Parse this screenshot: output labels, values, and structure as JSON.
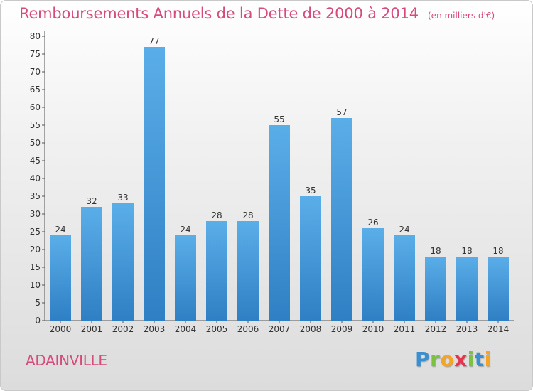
{
  "header": {
    "title": "Remboursements Annuels de la Dette de 2000 à 2014",
    "unit": "(en milliers d'€)"
  },
  "footer": {
    "commune": "ADAINVILLE"
  },
  "logo": {
    "text": "Proxiti",
    "letters": [
      {
        "char": "P",
        "color": "#3a8fd1"
      },
      {
        "char": "r",
        "color": "#7cc242"
      },
      {
        "char": "o",
        "color": "#f4a524"
      },
      {
        "char": "x",
        "color": "#e5344f"
      },
      {
        "char": "i",
        "color": "#7cc242"
      },
      {
        "char": "t",
        "color": "#3a8fd1"
      },
      {
        "char": "i",
        "color": "#f4a524"
      }
    ]
  },
  "chart_data": {
    "type": "bar",
    "title": "Remboursements Annuels de la Dette de 2000 à 2014",
    "subtitle": "(en milliers d'€)",
    "xlabel": "",
    "ylabel": "",
    "categories": [
      "2000",
      "2001",
      "2002",
      "2003",
      "2004",
      "2005",
      "2006",
      "2007",
      "2008",
      "2009",
      "2010",
      "2011",
      "2012",
      "2013",
      "2014"
    ],
    "values": [
      24,
      32,
      33,
      77,
      24,
      28,
      28,
      55,
      35,
      57,
      26,
      24,
      18,
      18,
      18
    ],
    "ylim": [
      0,
      80
    ],
    "yticks": [
      0,
      5,
      10,
      15,
      20,
      25,
      30,
      35,
      40,
      45,
      50,
      55,
      60,
      65,
      70,
      75,
      80
    ],
    "grid": false,
    "legend": "none",
    "bar_color_top": "#5aaee8",
    "bar_color_bottom": "#2f7fc4"
  }
}
